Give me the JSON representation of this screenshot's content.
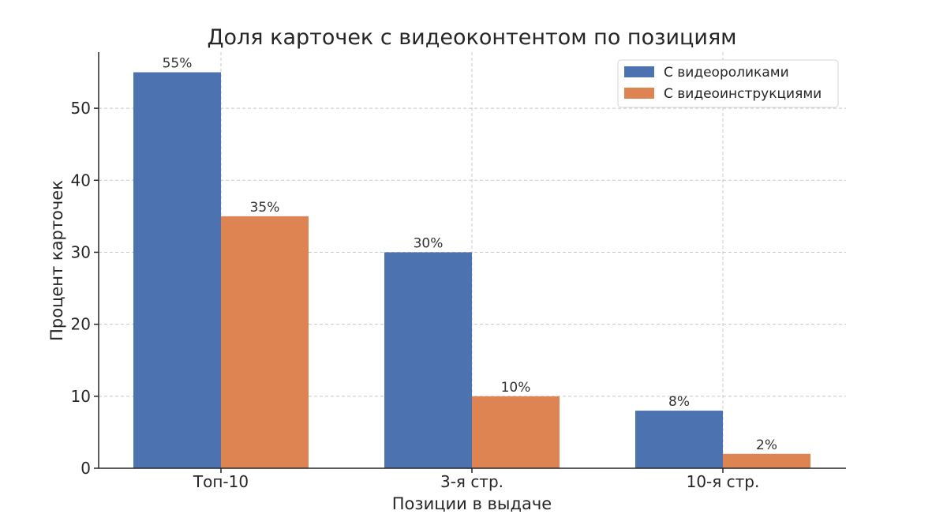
{
  "chart_data": {
    "type": "bar",
    "title": "Доля карточек с видеоконтентом по позициям",
    "xlabel": "Позиции в выдаче",
    "ylabel": "Процент карточек",
    "categories": [
      "Топ-10",
      "3-я стр.",
      "10-я стр."
    ],
    "series": [
      {
        "name": "С видеороликами",
        "values": [
          55,
          30,
          8
        ],
        "color": "#4c72b0",
        "labels": [
          "55%",
          "30%",
          "8%"
        ]
      },
      {
        "name": "С видеоинструкциями",
        "values": [
          35,
          10,
          2
        ],
        "color": "#dd8452",
        "labels": [
          "35%",
          "10%",
          "2%"
        ]
      }
    ],
    "ylim": [
      0,
      57.8
    ],
    "yticks": [
      0,
      10,
      20,
      30,
      40,
      50
    ],
    "grid": true,
    "legend": "top-right"
  }
}
